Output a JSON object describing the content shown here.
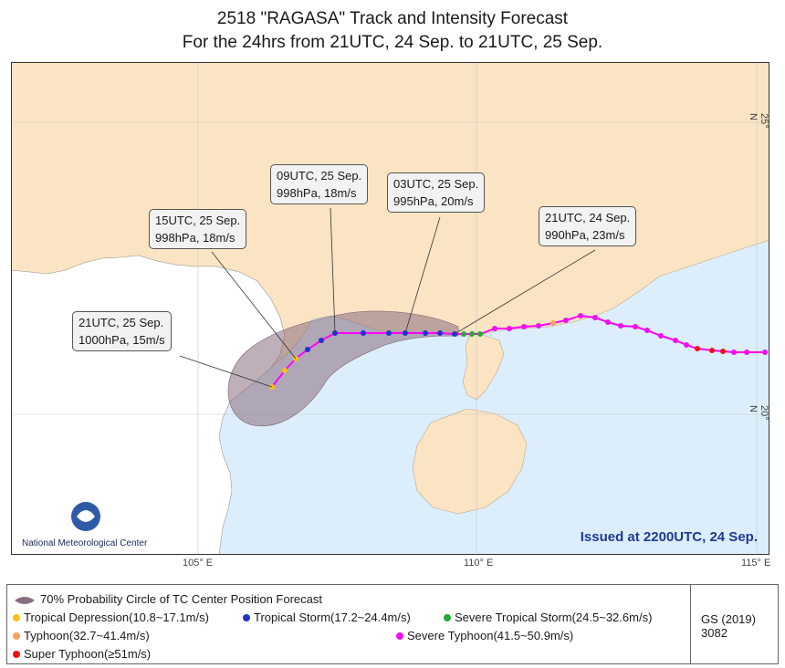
{
  "title": {
    "line1": "2518 \"RAGASA\" Track and Intensity Forecast",
    "line2": "For the 24hrs from 21UTC, 24 Sep. to 21UTC, 25 Sep."
  },
  "axis": {
    "lon_105": "105° E",
    "lon_110": "110° E",
    "lon_115": "115° E",
    "lat_25": "25° N",
    "lat_20": "20° N"
  },
  "callouts": [
    {
      "time": "21UTC, 24 Sep.",
      "info": "990hPa, 23m/s"
    },
    {
      "time": "03UTC, 25 Sep.",
      "info": "995hPa, 20m/s"
    },
    {
      "time": "09UTC, 25 Sep.",
      "info": "998hPa, 18m/s"
    },
    {
      "time": "15UTC, 25 Sep.",
      "info": "998hPa, 18m/s"
    },
    {
      "time": "21UTC, 25 Sep.",
      "info": "1000hPa, 15m/s"
    }
  ],
  "issued": "Issued at 2200UTC, 24 Sep.",
  "center": "National Meteorological Center",
  "legend": {
    "prob_circle": "70% Probability Circle of TC Center Position Forecast",
    "td": "Tropical Depression(10.8~17.1m/s)",
    "ts": "Tropical Storm(17.2~24.4m/s)",
    "sts": "Severe Tropical Storm(24.5~32.6m/s)",
    "ty": "Typhoon(32.7~41.4m/s)",
    "sty": "Severe Typhoon(41.5~50.9m/s)",
    "superty": "Super Typhoon(≥51m/s)",
    "gs": "GS (2019) 3082"
  },
  "colors": {
    "land": "#fae4c3",
    "sea": "#dceefb",
    "track": "#ff00ff",
    "td": "#f5c21b",
    "ts": "#2233cc",
    "sts": "#22aa33",
    "ty": "#f7a35c",
    "sty": "#ee11ee",
    "superty": "#ee1111",
    "prob": "#8a6d7e"
  }
}
